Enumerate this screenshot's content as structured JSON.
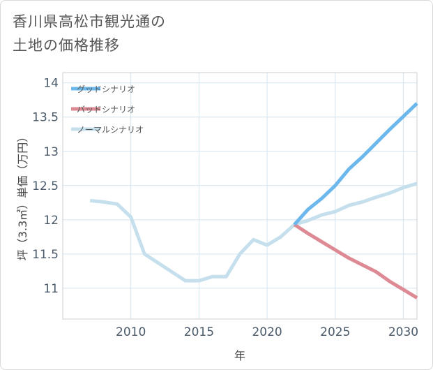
{
  "title_lines": [
    "香川県高松市観光通の",
    "土地の価格推移"
  ],
  "chart_data": {
    "type": "line",
    "title": "香川県高松市観光通の土地の価格推移",
    "xlabel": "年",
    "ylabel": "坪（3.3㎡）単価（万円）",
    "xlim": [
      2005,
      2031
    ],
    "ylim": [
      10.55,
      14.15
    ],
    "xticks": [
      2010,
      2015,
      2020,
      2025,
      2030
    ],
    "yticks": [
      11,
      11.5,
      12,
      12.5,
      13,
      13.5,
      14
    ],
    "ytick_labels": [
      "11",
      "11.5",
      "12",
      "12.5",
      "13",
      "13.5",
      "14"
    ],
    "grid": true,
    "legend": "top-left",
    "series": [
      {
        "name": "グッドシナリオ",
        "color": "#6cb8ec",
        "x": [
          2022,
          2023,
          2024,
          2025,
          2026,
          2027,
          2028,
          2029,
          2030,
          2031
        ],
        "values": [
          11.93,
          12.15,
          12.31,
          12.5,
          12.74,
          12.92,
          13.12,
          13.32,
          13.51,
          13.7
        ]
      },
      {
        "name": "バッドシナリオ",
        "color": "#dd8a94",
        "x": [
          2022,
          2023,
          2024,
          2025,
          2026,
          2027,
          2028,
          2029,
          2030,
          2031
        ],
        "values": [
          11.93,
          11.8,
          11.68,
          11.56,
          11.44,
          11.34,
          11.24,
          11.1,
          10.98,
          10.86
        ]
      },
      {
        "name": "ノーマルシナリオ",
        "color": "#c5dfed",
        "x": [
          2007,
          2008,
          2009,
          2010,
          2011,
          2012,
          2013,
          2014,
          2015,
          2016,
          2017,
          2018,
          2019,
          2020,
          2021,
          2022,
          2023,
          2024,
          2025,
          2026,
          2027,
          2028,
          2029,
          2030,
          2031
        ],
        "values": [
          12.28,
          12.26,
          12.23,
          12.04,
          11.5,
          11.37,
          11.24,
          11.11,
          11.11,
          11.17,
          11.17,
          11.5,
          11.71,
          11.63,
          11.75,
          11.93,
          11.99,
          12.07,
          12.12,
          12.21,
          12.26,
          12.33,
          12.39,
          12.47,
          12.53
        ]
      }
    ]
  }
}
